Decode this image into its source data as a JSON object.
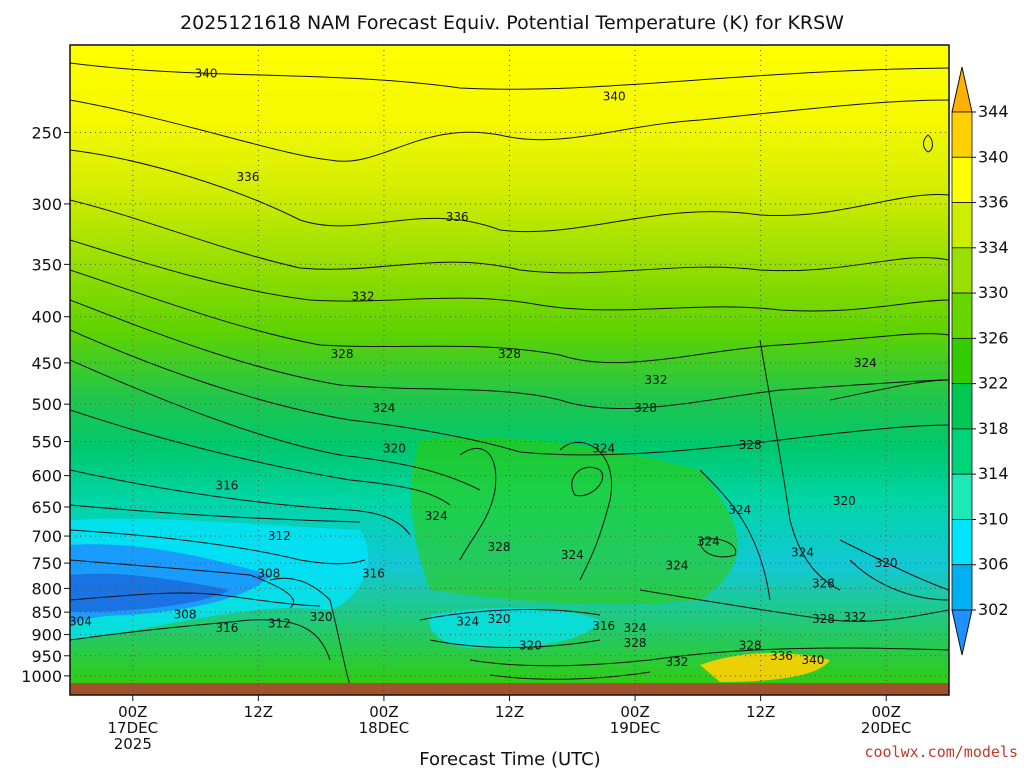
{
  "chart_data": {
    "type": "heatmap",
    "title": "2025121618 NAM Forecast Equiv. Potential Temperature (K) for KRSW",
    "xlabel": "Forecast Time (UTC)",
    "ylabel": "",
    "y_levels_hpa": [
      250,
      300,
      350,
      400,
      450,
      500,
      550,
      600,
      650,
      700,
      750,
      800,
      850,
      900,
      950,
      1000
    ],
    "y_axis": "pressure (hPa), log scale, decreasing upward",
    "ylim": [
      1050,
      200
    ],
    "x_ticks": [
      {
        "hour": 6,
        "line1": "00Z",
        "line2": "17DEC",
        "line3": "2025"
      },
      {
        "hour": 18,
        "line1": "12Z",
        "line2": "",
        "line3": ""
      },
      {
        "hour": 30,
        "line1": "00Z",
        "line2": "18DEC",
        "line3": ""
      },
      {
        "hour": 42,
        "line1": "12Z",
        "line2": "",
        "line3": ""
      },
      {
        "hour": 54,
        "line1": "00Z",
        "line2": "19DEC",
        "line3": ""
      },
      {
        "hour": 66,
        "line1": "12Z",
        "line2": "",
        "line3": ""
      },
      {
        "hour": 78,
        "line1": "00Z",
        "line2": "20DEC",
        "line3": ""
      }
    ],
    "xlim_forecast_hours": [
      0,
      84
    ],
    "colorbar": {
      "labels": [
        302,
        306,
        310,
        314,
        318,
        322,
        326,
        330,
        334,
        336,
        340,
        344
      ],
      "colors": [
        "#1e90ff",
        "#00b0f0",
        "#00e5ff",
        "#1de9b6",
        "#00d47a",
        "#00c853",
        "#33cc00",
        "#66d600",
        "#99e000",
        "#ccee00",
        "#ffff00",
        "#ffd000",
        "#ffb000"
      ],
      "extend": "both"
    },
    "contour_labels": [
      {
        "text": "340",
        "hour": 13,
        "level": 215
      },
      {
        "text": "340",
        "hour": 52,
        "level": 228
      },
      {
        "text": "336",
        "hour": 17,
        "level": 280
      },
      {
        "text": "336",
        "hour": 37,
        "level": 310
      },
      {
        "text": "332",
        "hour": 28,
        "level": 380
      },
      {
        "text": "328",
        "hour": 26,
        "level": 440
      },
      {
        "text": "328",
        "hour": 42,
        "level": 440
      },
      {
        "text": "324",
        "hour": 30,
        "level": 505
      },
      {
        "text": "320",
        "hour": 31,
        "level": 560
      },
      {
        "text": "316",
        "hour": 15,
        "level": 615
      },
      {
        "text": "312",
        "hour": 20,
        "level": 700
      },
      {
        "text": "308",
        "hour": 19,
        "level": 770
      },
      {
        "text": "316",
        "hour": 29,
        "level": 770
      },
      {
        "text": "304",
        "hour": 1,
        "level": 870
      },
      {
        "text": "308",
        "hour": 11,
        "level": 855
      },
      {
        "text": "316",
        "hour": 15,
        "level": 885
      },
      {
        "text": "312",
        "hour": 20,
        "level": 875
      },
      {
        "text": "320",
        "hour": 24,
        "level": 860
      },
      {
        "text": "324",
        "hour": 35,
        "level": 665
      },
      {
        "text": "328",
        "hour": 41,
        "level": 720
      },
      {
        "text": "324",
        "hour": 51,
        "level": 560
      },
      {
        "text": "328",
        "hour": 55,
        "level": 505
      },
      {
        "text": "332",
        "hour": 56,
        "level": 470
      },
      {
        "text": "324",
        "hour": 48,
        "level": 735
      },
      {
        "text": "324",
        "hour": 58,
        "level": 755
      },
      {
        "text": "324",
        "hour": 61,
        "level": 710
      },
      {
        "text": "324",
        "hour": 64,
        "level": 655
      },
      {
        "text": "324",
        "hour": 70,
        "level": 730
      },
      {
        "text": "328",
        "hour": 65,
        "level": 555
      },
      {
        "text": "324",
        "hour": 76,
        "level": 450
      },
      {
        "text": "320",
        "hour": 74,
        "level": 640
      },
      {
        "text": "320",
        "hour": 78,
        "level": 750
      },
      {
        "text": "328",
        "hour": 72,
        "level": 790
      },
      {
        "text": "328",
        "hour": 72,
        "level": 865
      },
      {
        "text": "332",
        "hour": 75,
        "level": 860
      },
      {
        "text": "324",
        "hour": 38,
        "level": 870
      },
      {
        "text": "320",
        "hour": 41,
        "level": 865
      },
      {
        "text": "320",
        "hour": 44,
        "level": 925
      },
      {
        "text": "316",
        "hour": 51,
        "level": 880
      },
      {
        "text": "324",
        "hour": 54,
        "level": 885
      },
      {
        "text": "328",
        "hour": 54,
        "level": 920
      },
      {
        "text": "332",
        "hour": 58,
        "level": 965
      },
      {
        "text": "328",
        "hour": 65,
        "level": 925
      },
      {
        "text": "336",
        "hour": 68,
        "level": 950
      },
      {
        "text": "340",
        "hour": 71,
        "level": 960
      }
    ]
  },
  "credit": "coolwx.com/models"
}
